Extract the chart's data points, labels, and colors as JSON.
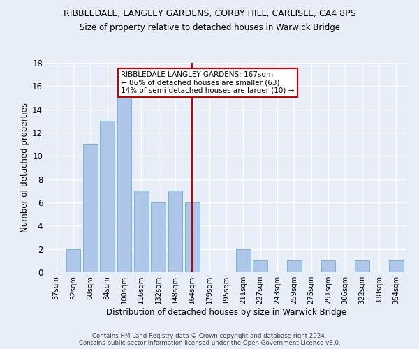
{
  "title1": "RIBBLEDALE, LANGLEY GARDENS, CORBY HILL, CARLISLE, CA4 8PS",
  "title2": "Size of property relative to detached houses in Warwick Bridge",
  "xlabel": "Distribution of detached houses by size in Warwick Bridge",
  "ylabel": "Number of detached properties",
  "categories": [
    "37sqm",
    "52sqm",
    "68sqm",
    "84sqm",
    "100sqm",
    "116sqm",
    "132sqm",
    "148sqm",
    "164sqm",
    "179sqm",
    "195sqm",
    "211sqm",
    "227sqm",
    "243sqm",
    "259sqm",
    "275sqm",
    "291sqm",
    "306sqm",
    "322sqm",
    "338sqm",
    "354sqm"
  ],
  "values": [
    0,
    2,
    11,
    13,
    15,
    7,
    6,
    7,
    6,
    0,
    0,
    2,
    1,
    0,
    1,
    0,
    1,
    0,
    1,
    0,
    1
  ],
  "bar_color": "#aec6e8",
  "bar_edgecolor": "#6aaed6",
  "redline_index": 8,
  "annotation_text": "RIBBLEDALE LANGLEY GARDENS: 167sqm\n← 86% of detached houses are smaller (63)\n14% of semi-detached houses are larger (10) →",
  "annotation_box_color": "#ffffff",
  "annotation_box_edgecolor": "#cc0000",
  "redline_color": "#cc0000",
  "footer1": "Contains HM Land Registry data © Crown copyright and database right 2024.",
  "footer2": "Contains public sector information licensed under the Open Government Licence v3.0.",
  "ylim": [
    0,
    18
  ],
  "yticks": [
    0,
    2,
    4,
    6,
    8,
    10,
    12,
    14,
    16,
    18
  ],
  "background_color": "#e8eef8",
  "grid_color": "#ffffff"
}
